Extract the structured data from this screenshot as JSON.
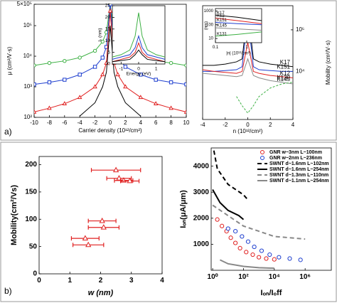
{
  "panel_labels": [
    "a)",
    "b)"
  ],
  "chart_data": [
    {
      "type": "line",
      "x": [
        -10,
        -8,
        -6,
        -4,
        -2,
        -1,
        -0.5,
        0,
        0.5,
        1,
        2,
        4,
        6,
        8,
        10
      ],
      "xlim": [
        -10,
        10
      ],
      "xticks": [
        -10,
        -8,
        -6,
        -4,
        -2,
        0,
        2,
        4,
        6,
        8,
        10
      ],
      "ylim": [
        100,
        500000
      ],
      "ylog": true,
      "yticks": [
        {
          "value": 100,
          "label": "10²"
        },
        {
          "value": 1000,
          "label": "10³"
        },
        {
          "value": 10000,
          "label": "10⁴"
        },
        {
          "value": 100000,
          "label": "10⁵"
        },
        {
          "value": 500000,
          "label": "5×10⁵"
        }
      ],
      "xlabel": "Carrier density (10¹²/cm²)",
      "ylabel": "μ (cm²/V·s)",
      "series": [
        {
          "color": "#3cb043",
          "marker": "circle",
          "values": [
            5000,
            6000,
            7000,
            9000,
            15000,
            30000,
            60000,
            500000,
            60000,
            30000,
            15000,
            9000,
            7000,
            6000,
            5000
          ]
        },
        {
          "color": "#1f3fcf",
          "marker": "square",
          "values": [
            1200,
            1400,
            1700,
            2500,
            4500,
            9000,
            20000,
            500000,
            20000,
            9000,
            4500,
            2500,
            1700,
            1400,
            1200
          ]
        },
        {
          "color": "#e02020",
          "marker": "triangle",
          "values": [
            150,
            200,
            280,
            450,
            1000,
            2500,
            6000,
            300000,
            6000,
            2500,
            1000,
            450,
            280,
            200,
            150
          ]
        },
        {
          "color": "#000000",
          "values": [
            null,
            null,
            null,
            110,
            300,
            1000,
            3000,
            100000,
            3000,
            1000,
            300,
            110,
            null,
            null,
            null
          ]
        }
      ]
    },
    {
      "type": "line",
      "x": [
        -1.5,
        -1,
        -0.5,
        -0.2,
        0,
        0.2,
        0.5,
        1,
        1.5
      ],
      "xlim": [
        -1.5,
        1.5
      ],
      "xticks": [
        -1,
        0,
        1
      ],
      "ylim": [
        0,
        25
      ],
      "yticks": [
        0,
        5,
        10,
        15,
        20,
        25
      ],
      "xlabel": "Energy (eV)",
      "ylabel": "lₛ (nm)",
      "series": [
        {
          "color": "#3cb043",
          "values": [
            3,
            4,
            6,
            12,
            22,
            12,
            6,
            4,
            3
          ]
        },
        {
          "color": "#1f3fcf",
          "values": [
            2,
            3,
            4,
            7,
            12,
            7,
            4,
            3,
            2
          ]
        },
        {
          "color": "#e02020",
          "values": [
            1,
            2,
            3,
            5,
            9,
            5,
            3,
            2,
            1
          ]
        },
        {
          "color": "#000000",
          "values": [
            1,
            1.5,
            2,
            4,
            6,
            4,
            2,
            1.5,
            1
          ]
        }
      ]
    },
    {
      "type": "line",
      "x": [
        -4,
        -3,
        -2,
        -1,
        -0.5,
        0,
        0.5,
        1,
        2,
        3,
        4
      ],
      "xlim": [
        -4,
        4
      ],
      "xticks": [
        -4,
        -2,
        0,
        2,
        4
      ],
      "ylim": [
        700,
        380000
      ],
      "ylog": true,
      "yaxis_side": "right",
      "yticks": [
        {
          "value": 10000,
          "label": "10⁴"
        },
        {
          "value": 100000,
          "label": "10⁵"
        }
      ],
      "xlabel": "n (10¹²/cm²)",
      "ylabel": "Mobility (cm²/V·s)",
      "legend": "inline",
      "series": [
        {
          "name": "K17",
          "color": "#000000",
          "values": [
            14000,
            14000,
            15000,
            17000,
            20000,
            300000,
            20000,
            17000,
            15000,
            14000,
            13000
          ]
        },
        {
          "name": "K151",
          "color": "#1f3fcf",
          "values": [
            10000,
            10000,
            10500,
            11000,
            13000,
            200000,
            13000,
            11000,
            10500,
            10000,
            10000
          ]
        },
        {
          "name": "K12",
          "color": "#e02020",
          "values": [
            11000,
            10000,
            9500,
            9000,
            10000,
            50000,
            10000,
            9000,
            8000,
            7500,
            7000
          ]
        },
        {
          "name": "K145",
          "color": "#888888",
          "values": [
            9000,
            8500,
            8000,
            7500,
            8000,
            20000,
            8000,
            7000,
            6000,
            5500,
            5000
          ]
        },
        {
          "name": "K130",
          "color": "#3cb043",
          "dash": "3 2",
          "values": [
            null,
            null,
            null,
            2500,
            1500,
            1000,
            1500,
            2500,
            4000,
            5000,
            5500
          ]
        }
      ]
    },
    {
      "type": "line",
      "x": [
        0.1,
        0.5,
        3
      ],
      "xlim": [
        0.1,
        3
      ],
      "xlog": true,
      "xticks": [
        0.1,
        1
      ],
      "ylim": [
        5,
        1500
      ],
      "ylog": true,
      "yticks": [
        10,
        100,
        1000
      ],
      "xlabel": "|n| (10¹²/cm²)",
      "ylabel": "(nm)",
      "legend": "inline-start",
      "series": [
        {
          "name": "K17",
          "color": "#000000",
          "values": [
            500,
            350,
            200
          ]
        },
        {
          "name": "K12",
          "color": "#e02020",
          "values": [
            300,
            200,
            120
          ]
        },
        {
          "name": "K151",
          "color": "#1f3fcf",
          "values": [
            150,
            120,
            100
          ]
        },
        {
          "name": "K145",
          "color": "#888888",
          "values": [
            60,
            50,
            40
          ]
        },
        {
          "name": "K131",
          "color": "#3cb043",
          "values": [
            15,
            20,
            30
          ]
        }
      ]
    },
    {
      "type": "scatter",
      "x": [
        2.5,
        2.6,
        2.75,
        2.95,
        2.05,
        2.1,
        1.5,
        1.6
      ],
      "xerr": [
        0.8,
        0.4,
        0.3,
        0.3,
        0.45,
        0.5,
        0.45,
        0.5
      ],
      "values": [
        190,
        175,
        171,
        170,
        97,
        85,
        65,
        53
      ],
      "color": "#e02020",
      "marker": "triangle",
      "xlim": [
        0,
        4
      ],
      "xticks": [
        0,
        1,
        2,
        3,
        4
      ],
      "ylim": [
        0,
        215
      ],
      "yticks": [
        0,
        50,
        100,
        150,
        200
      ],
      "xlabel": "w (nm)",
      "ylabel": "Mobility(cm²/Vs)"
    },
    {
      "type": "line",
      "xlim": [
        0.8,
        50000000
      ],
      "xlog": true,
      "xticks": [
        {
          "value": 1,
          "label": "10⁰"
        },
        {
          "value": 100,
          "label": "10²"
        },
        {
          "value": 10000,
          "label": "10⁴"
        },
        {
          "value": 1000000,
          "label": "10⁶"
        }
      ],
      "ylim": [
        0,
        4700
      ],
      "yticks": [
        1000,
        2000,
        3000,
        4000
      ],
      "xlabel": "Iₒₙ/Iₒff",
      "ylabel": "Iₒₙ(μA/μm)",
      "legend": "top-right",
      "series": [
        {
          "name": "GNR w~3nm L~100nm",
          "color": "#e02020",
          "marker": "circle",
          "line": false,
          "x": [
            2,
            4,
            8,
            15,
            30,
            60,
            150,
            400,
            1000,
            3000,
            10000
          ],
          "values": [
            1950,
            1700,
            1500,
            1250,
            1050,
            850,
            700,
            600,
            500,
            450,
            420
          ]
        },
        {
          "name": "GNR w~2nm L~236nm",
          "color": "#1f3fcf",
          "marker": "circle",
          "line": false,
          "x": [
            10,
            30,
            80,
            200,
            500,
            1500,
            5000,
            20000,
            100000,
            500000
          ],
          "values": [
            1600,
            1500,
            1300,
            1100,
            900,
            750,
            600,
            500,
            450,
            400
          ]
        },
        {
          "name": "SWNT d~1.6nm L~102nm",
          "color": "#000000",
          "dash": "6 4",
          "x": [
            1.2,
            2,
            10,
            100,
            200
          ],
          "values": [
            4600,
            3900,
            3300,
            2900,
            2700
          ]
        },
        {
          "name": "SWNT d~1.6nm L~254nm",
          "color": "#000000",
          "x": [
            1,
            3,
            10,
            50,
            100
          ],
          "values": [
            3100,
            2600,
            2300,
            2100,
            1950
          ]
        },
        {
          "name": "SWNT d~1.3nm L~110nm",
          "color": "#888888",
          "dash": "6 4",
          "x": [
            1,
            10,
            100,
            1000,
            10000,
            1000000
          ],
          "values": [
            2500,
            2100,
            1700,
            1500,
            1300,
            1200
          ]
        },
        {
          "name": "SWNT d~1.1nm L~254nm",
          "color": "#888888",
          "x": [
            3,
            10,
            100,
            1000,
            10000
          ],
          "values": [
            400,
            250,
            150,
            100,
            80
          ]
        }
      ]
    }
  ]
}
